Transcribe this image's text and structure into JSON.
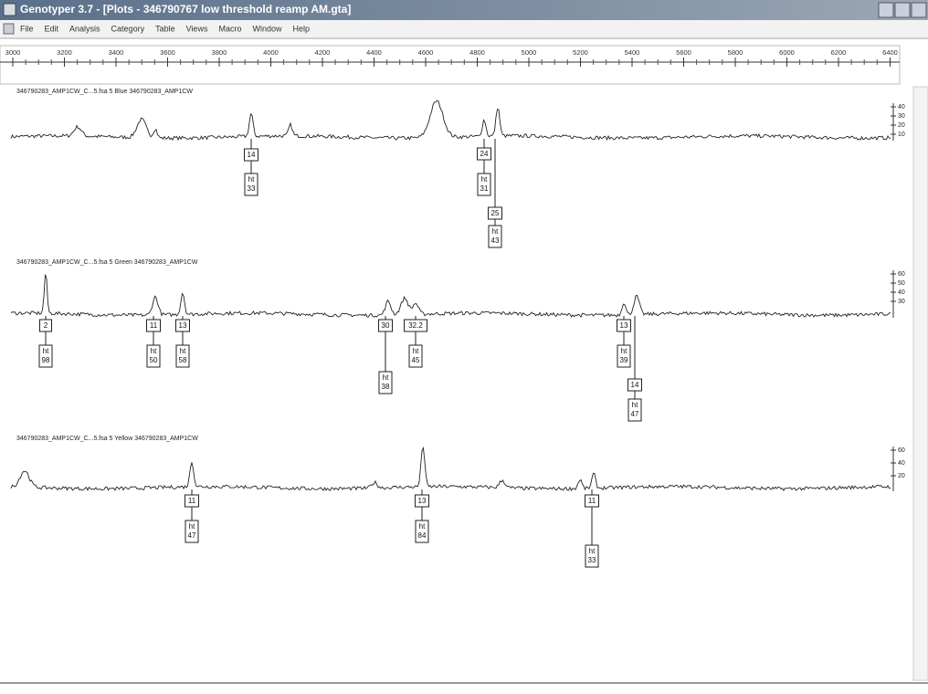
{
  "window": {
    "title": "Genotyper 3.7 - [Plots - 346790767 low threshold reamp AM.gta]",
    "menu": [
      "File",
      "Edit",
      "Analysis",
      "Category",
      "Table",
      "Views",
      "Macro",
      "Window",
      "Help"
    ]
  },
  "ruler": {
    "ticks": [
      "3000",
      "3200",
      "3400",
      "3600",
      "3800",
      "4000",
      "4200",
      "4400",
      "4600",
      "4800",
      "5000",
      "5200",
      "5400",
      "5600",
      "5800",
      "6000",
      "6200",
      "6400"
    ]
  },
  "height_label": "ht",
  "panels": [
    {
      "label": "346790283_AMP1CW_C...5.fsa 5 Blue 346790283_AMP1CW",
      "scale": [
        "40",
        "30",
        "20",
        "10"
      ],
      "alleles": [
        {
          "allele": "14",
          "height": "33"
        },
        {
          "allele": "24",
          "height": "31"
        },
        {
          "allele": "25",
          "height": "43"
        }
      ]
    },
    {
      "label": "346790283_AMP1CW_C...5.fsa 5 Green 346790283_AMP1CW",
      "scale": [
        "60",
        "50",
        "40",
        "30"
      ],
      "alleles": [
        {
          "allele": "2",
          "height": "98"
        },
        {
          "allele": "11",
          "height": "50"
        },
        {
          "allele": "13",
          "height": "58"
        },
        {
          "allele": "30",
          "height": "38"
        },
        {
          "allele": "32.2",
          "height": "45"
        },
        {
          "allele": "13",
          "height": "39"
        },
        {
          "allele": "14",
          "height": "47"
        }
      ]
    },
    {
      "label": "346790283_AMP1CW_C...5.fsa 5 Yellow 346790283_AMP1CW",
      "scale": [
        "60",
        "40",
        "20"
      ],
      "alleles": [
        {
          "allele": "11",
          "height": "47"
        },
        {
          "allele": "13",
          "height": "84"
        },
        {
          "allele": "11",
          "height": "33"
        }
      ]
    }
  ]
}
